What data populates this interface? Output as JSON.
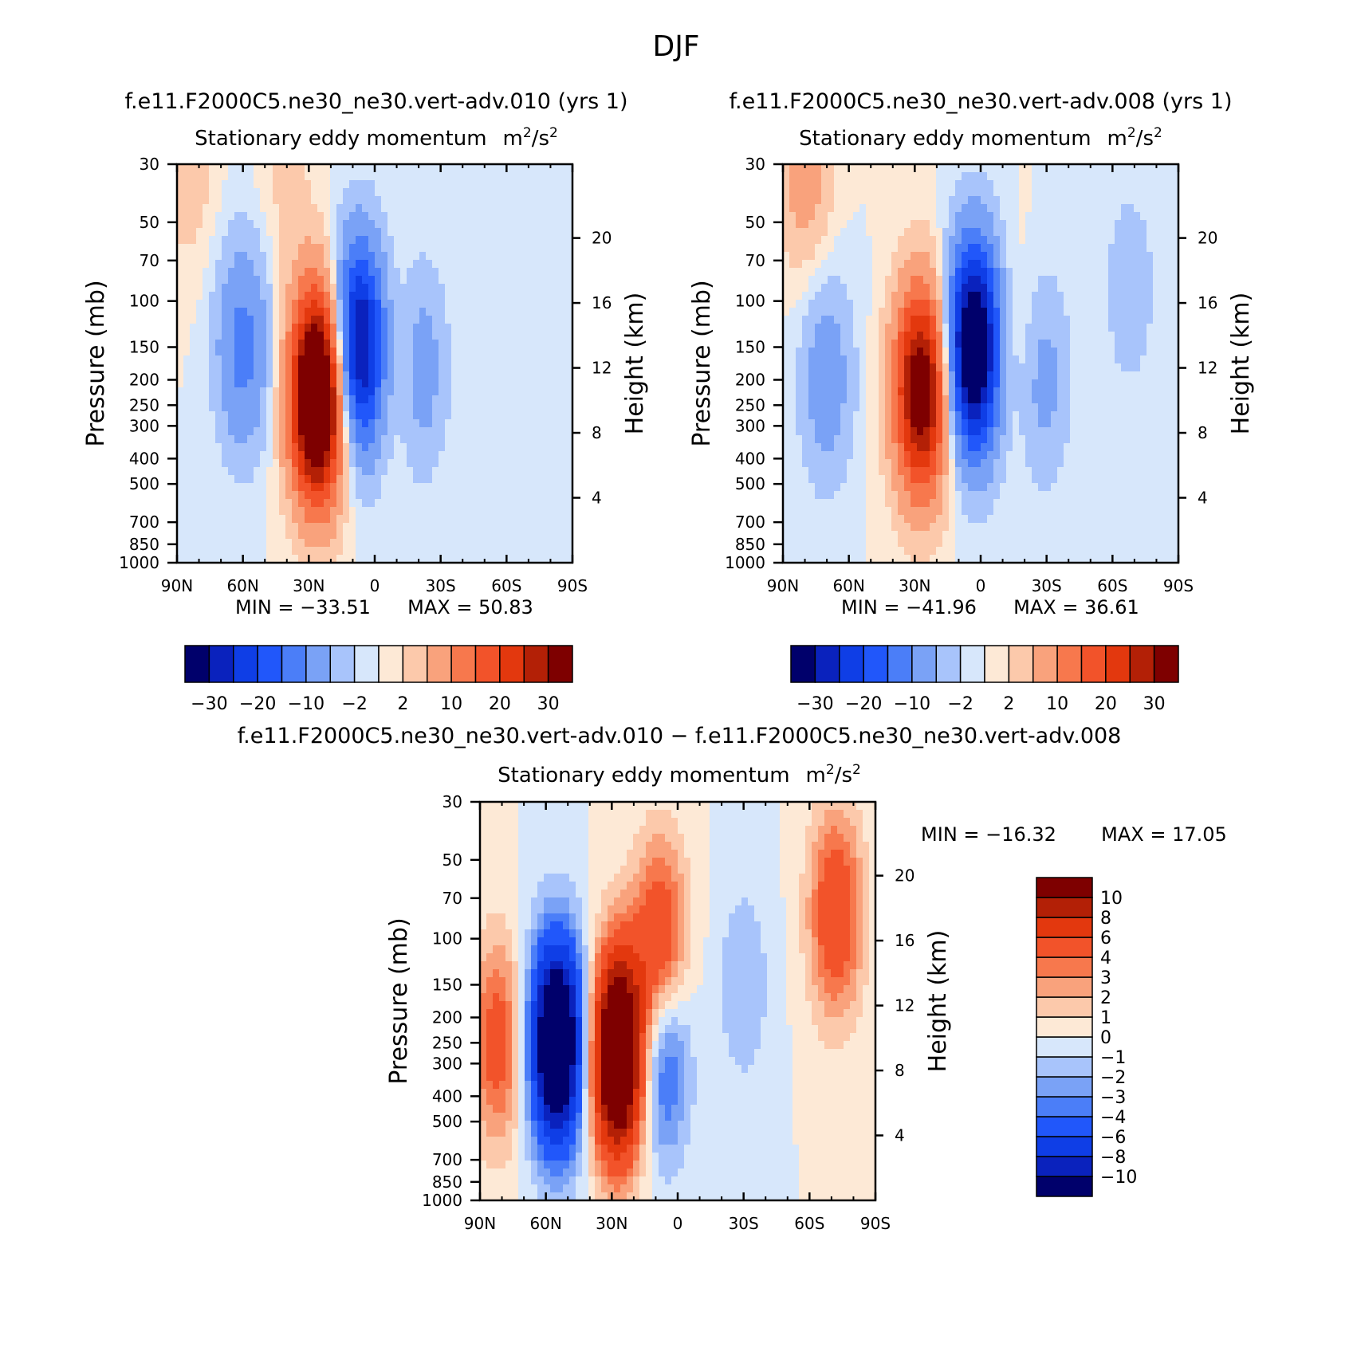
{
  "figure": {
    "title": "DJF"
  },
  "chart_data": [
    {
      "type": "contour",
      "run_title": "f.e11.F2000C5.ne30_ne30.vert-adv.010 (yrs 1)",
      "title": "Stationary eddy momentum",
      "units_base": "m",
      "units_exp1": "2",
      "units_mid": "/s",
      "units_exp2": "2",
      "xlabel": "",
      "ylabel": "Pressure (mb)",
      "ylabel_right": "Height (km)",
      "x_ticks": [
        "90N",
        "60N",
        "30N",
        "0",
        "30S",
        "60S",
        "90S"
      ],
      "x_values": [
        90,
        60,
        30,
        0,
        -30,
        -60,
        -90
      ],
      "y_ticks": [
        30,
        50,
        70,
        100,
        150,
        200,
        250,
        300,
        400,
        500,
        700,
        850,
        1000
      ],
      "height_ticks": [
        20,
        16,
        12,
        8,
        4
      ],
      "min_label": "MIN = −33.51",
      "max_label": "MAX = 50.83",
      "min": -33.51,
      "max": 50.83,
      "levels": [
        -35,
        -30,
        -25,
        -20,
        -15,
        -10,
        -5,
        -2,
        0,
        2,
        5,
        10,
        15,
        20,
        25,
        30,
        35
      ],
      "colorbar_labels": [
        "−30",
        "−20",
        "−10",
        "−2",
        "2",
        "10",
        "20",
        "30"
      ],
      "colorbar_label_levels": [
        -30,
        -20,
        -10,
        -2,
        2,
        10,
        20,
        30
      ],
      "features": [
        {
          "lat": 26,
          "p": 230,
          "value": 50.8
        },
        {
          "lat": 60,
          "p": 150,
          "value": -12
        },
        {
          "lat": 7,
          "p": 150,
          "value": -33.5
        },
        {
          "lat": -20,
          "p": 180,
          "value": -9
        },
        {
          "lat": -10,
          "p": 170,
          "value": 5
        },
        {
          "lat": 85,
          "p": 30,
          "value": 4
        },
        {
          "lat": 40,
          "p": 30,
          "value": 3
        }
      ]
    },
    {
      "type": "contour",
      "run_title": "f.e11.F2000C5.ne30_ne30.vert-adv.008 (yrs 1)",
      "title": "Stationary eddy momentum",
      "units_base": "m",
      "units_exp1": "2",
      "units_mid": "/s",
      "units_exp2": "2",
      "xlabel": "",
      "ylabel": "Pressure (mb)",
      "ylabel_right": "Height (km)",
      "x_ticks": [
        "90N",
        "60N",
        "30N",
        "0",
        "30S",
        "60S",
        "90S"
      ],
      "x_values": [
        90,
        60,
        30,
        0,
        -30,
        -60,
        -90
      ],
      "y_ticks": [
        30,
        50,
        70,
        100,
        150,
        200,
        250,
        300,
        400,
        500,
        700,
        850,
        1000
      ],
      "height_ticks": [
        20,
        16,
        12,
        8,
        4
      ],
      "min_label": "MIN = −41.96",
      "max_label": "MAX = 36.61",
      "min": -41.96,
      "max": 36.61,
      "levels": [
        -35,
        -30,
        -25,
        -20,
        -15,
        -10,
        -5,
        -2,
        0,
        2,
        5,
        10,
        15,
        20,
        25,
        30,
        35
      ],
      "colorbar_labels": [
        "−30",
        "−20",
        "−10",
        "−2",
        "2",
        "10",
        "20",
        "30"
      ],
      "colorbar_label_levels": [
        -30,
        -20,
        -10,
        -2,
        2,
        10,
        20,
        30
      ],
      "features": [
        {
          "lat": 27,
          "p": 220,
          "value": 36.6
        },
        {
          "lat": 70,
          "p": 200,
          "value": -8
        },
        {
          "lat": 3,
          "p": 150,
          "value": -42
        },
        {
          "lat": -28,
          "p": 200,
          "value": -7
        },
        {
          "lat": -68,
          "p": 90,
          "value": -4
        },
        {
          "lat": 80,
          "p": 30,
          "value": 8
        },
        {
          "lat": -14,
          "p": 150,
          "value": 4
        }
      ]
    },
    {
      "type": "contour",
      "run_title": "f.e11.F2000C5.ne30_ne30.vert-adv.010 − f.e11.F2000C5.ne30_ne30.vert-adv.008",
      "title": "Stationary eddy momentum",
      "units_base": "m",
      "units_exp1": "2",
      "units_mid": "/s",
      "units_exp2": "2",
      "xlabel": "",
      "ylabel": "Pressure (mb)",
      "ylabel_right": "Height (km)",
      "x_ticks": [
        "90N",
        "60N",
        "30N",
        "0",
        "30S",
        "60S",
        "90S"
      ],
      "x_values": [
        90,
        60,
        30,
        0,
        -30,
        -60,
        -90
      ],
      "y_ticks": [
        30,
        50,
        70,
        100,
        150,
        200,
        250,
        300,
        400,
        500,
        700,
        850,
        1000
      ],
      "height_ticks": [
        20,
        16,
        12,
        8,
        4
      ],
      "min_label": "MIN = −16.32",
      "max_label": "MAX = 17.05",
      "min": -16.32,
      "max": 17.05,
      "levels": [
        -12,
        -10,
        -8,
        -6,
        -4,
        -3,
        -2,
        -1,
        0,
        1,
        2,
        3,
        4,
        6,
        8,
        10,
        12
      ],
      "colorbar_labels": [
        "10",
        "8",
        "6",
        "4",
        "3",
        "2",
        "1",
        "0",
        "−1",
        "−2",
        "−3",
        "−4",
        "−6",
        "−8",
        "−10"
      ],
      "colorbar_label_levels": [
        10,
        8,
        6,
        4,
        3,
        2,
        1,
        0,
        -1,
        -2,
        -3,
        -4,
        -6,
        -8,
        -10
      ],
      "features": [
        {
          "lat": 55,
          "p": 250,
          "value": -16.3
        },
        {
          "lat": 27,
          "p": 280,
          "value": 17
        },
        {
          "lat": 8,
          "p": 110,
          "value": 7
        },
        {
          "lat": 7,
          "p": 270,
          "value": -6
        },
        {
          "lat": 82,
          "p": 250,
          "value": 5
        },
        {
          "lat": -72,
          "p": 80,
          "value": 6
        },
        {
          "lat": -30,
          "p": 150,
          "value": -2
        }
      ]
    }
  ]
}
